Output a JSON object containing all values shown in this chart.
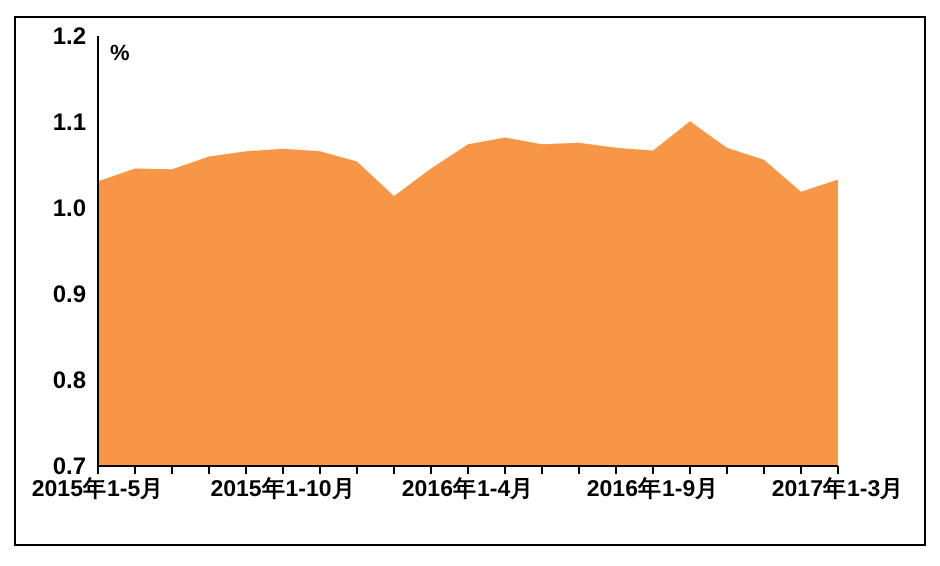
{
  "chart_data": {
    "type": "area",
    "ylabel": "%",
    "categories": [
      "2015年1-5月",
      null,
      null,
      null,
      null,
      "2015年1-10月",
      null,
      null,
      null,
      null,
      "2016年1-4月",
      null,
      null,
      null,
      null,
      "2016年1-9月",
      null,
      null,
      null,
      null,
      "2017年1-3月"
    ],
    "series": [
      {
        "color": "#f79646",
        "values": [
          1.031,
          1.046,
          1.045,
          1.06,
          1.066,
          1.069,
          1.066,
          1.054,
          1.014,
          1.046,
          1.074,
          1.082,
          1.074,
          1.076,
          1.07,
          1.067,
          1.101,
          1.07,
          1.056,
          1.019,
          1.033
        ]
      }
    ],
    "ylim": [
      0.7,
      1.2
    ],
    "yticks": [
      0.7,
      0.8,
      0.9,
      {
        "value": 1,
        "label": "1.0"
      },
      1.1,
      1.2
    ],
    "grid": false
  }
}
